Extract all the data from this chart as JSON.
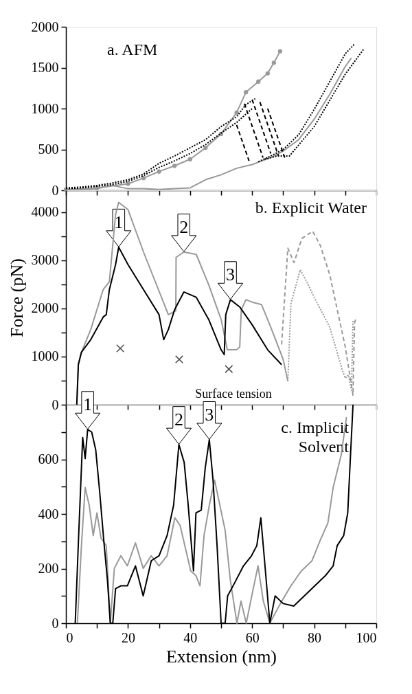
{
  "chart_data": [
    {
      "type": "line",
      "title": "a. AFM",
      "xlim": [
        0,
        100
      ],
      "xticks": [
        0,
        {
          "value": 10,
          "label": null
        },
        20,
        {
          "value": 30,
          "label": null
        },
        40,
        {
          "value": 50,
          "label": null
        },
        60,
        {
          "value": 70,
          "label": null
        },
        80,
        {
          "value": 90,
          "label": null
        },
        100
      ],
      "ylim": [
        0,
        2000
      ],
      "yticks": [
        0,
        500,
        1000,
        1500,
        2000
      ],
      "tick_labels": "y",
      "grid": false,
      "series": [
        {
          "color": "#999999",
          "marker": "circle",
          "x": [
            0,
            10,
            20,
            25,
            30,
            35,
            40,
            45,
            50,
            55,
            58,
            62,
            65,
            67,
            69
          ],
          "values": [
            10,
            30,
            80,
            150,
            230,
            300,
            380,
            520,
            690,
            950,
            1200,
            1330,
            1430,
            1560,
            1700
          ]
        },
        {
          "color": "#999999",
          "x": [
            0,
            5,
            10,
            15,
            20,
            25,
            30,
            35,
            40,
            45,
            50,
            55,
            60,
            66,
            70,
            75,
            80,
            85,
            90,
            92
          ],
          "values": [
            0,
            10,
            20,
            60,
            20,
            20,
            10,
            20,
            30,
            130,
            190,
            270,
            315,
            400,
            480,
            620,
            870,
            1175,
            1515,
            1620
          ]
        },
        {
          "color": "#000000",
          "line_style": "dotted",
          "x": [
            0,
            5,
            10,
            15,
            20,
            25,
            30,
            35,
            40,
            45,
            50,
            55,
            58,
            61,
            61.5,
            62,
            66,
            70,
            75,
            80,
            85,
            90,
            93
          ],
          "values": [
            30,
            40,
            60,
            90,
            130,
            200,
            330,
            420,
            520,
            620,
            780,
            900,
            1050,
            1120,
            null,
            350,
            420,
            500,
            680,
            990,
            1330,
            1670,
            1790
          ]
        },
        {
          "color": "#000000",
          "line_style": "dotted",
          "x": [
            0,
            5,
            10,
            15,
            20,
            25,
            30,
            35,
            40,
            45,
            50,
            55,
            60,
            60.5,
            64,
            68,
            72,
            76,
            80,
            85,
            90,
            96
          ],
          "values": [
            20,
            30,
            50,
            70,
            110,
            180,
            280,
            360,
            450,
            560,
            700,
            830,
            1000,
            null,
            380,
            420,
            420,
            600,
            780,
            1100,
            1420,
            1730
          ]
        },
        {
          "color": "#000000",
          "line_style": "dashed",
          "x": [
            55,
            59
          ],
          "values": [
            800,
            360
          ]
        },
        {
          "color": "#000000",
          "line_style": "dashed",
          "x": [
            57.5,
            63.5
          ],
          "values": [
            1060,
            400
          ]
        },
        {
          "color": "#000000",
          "line_style": "dashed",
          "x": [
            60,
            66
          ],
          "values": [
            1110,
            450
          ]
        },
        {
          "color": "#000000",
          "line_style": "dashed",
          "x": [
            62.5,
            68.5
          ],
          "values": [
            1080,
            420
          ]
        },
        {
          "color": "#000000",
          "line_style": "dashed",
          "x": [
            65,
            70.5
          ],
          "values": [
            1000,
            400
          ]
        }
      ]
    },
    {
      "type": "line",
      "title": "b. Explicit Water",
      "ylabel": "Force (pN)",
      "xlim": [
        0,
        100
      ],
      "xticks": [
        0,
        {
          "value": 10,
          "label": null
        },
        20,
        {
          "value": 30,
          "label": null
        },
        40,
        {
          "value": 50,
          "label": null
        },
        60,
        {
          "value": 70,
          "label": null
        },
        80,
        {
          "value": 90,
          "label": null
        },
        100
      ],
      "ylim": [
        0,
        4450
      ],
      "yticks": [
        0,
        {
          "value": 500,
          "label": null
        },
        1000,
        {
          "value": 1500,
          "label": null
        },
        2000,
        {
          "value": 2500,
          "label": null
        },
        3000,
        {
          "value": 3500,
          "label": null
        },
        4000
      ],
      "tick_labels": "y",
      "grid": false,
      "series": [
        {
          "color": "#999999",
          "x": [
            3.5,
            4,
            5,
            8,
            12,
            14,
            16,
            17,
            20,
            25,
            33,
            35.4,
            35.5,
            38,
            42,
            46,
            50,
            52,
            55,
            56,
            56.5,
            58,
            60,
            63,
            66,
            70,
            71.5
          ],
          "values": [
            0,
            830,
            1090,
            1560,
            2390,
            2550,
            3950,
            4200,
            4050,
            3170,
            1870,
            1950,
            3060,
            3170,
            3120,
            2490,
            1770,
            1140,
            1140,
            1200,
            1970,
            2180,
            2130,
            2080,
            1610,
            940,
            490
          ]
        },
        {
          "color": "#000000",
          "x": [
            3.5,
            4,
            5,
            8,
            12,
            13,
            14,
            16,
            17,
            20,
            25,
            30,
            31.5,
            33,
            35,
            38,
            42,
            46,
            50,
            51,
            51.5,
            53,
            56,
            60,
            65,
            69.5
          ],
          "values": [
            0,
            830,
            1090,
            1350,
            1820,
            1870,
            2390,
            2910,
            3270,
            2910,
            2390,
            1870,
            1350,
            1560,
            1970,
            2340,
            2230,
            1770,
            1140,
            1040,
            1870,
            2180,
            2030,
            1660,
            1140,
            830
          ]
        },
        {
          "color": "#999999",
          "line_style": "dashed",
          "x": [
            69.5,
            71.5,
            73.5,
            76,
            79.5,
            82,
            85,
            88,
            90,
            92.5,
            93,
            93.5
          ],
          "values": [
            1250,
            3250,
            2950,
            3450,
            3600,
            3300,
            2700,
            1800,
            1200,
            200,
            1700,
            1800
          ]
        },
        {
          "color": "#999999",
          "line_style": "dotted",
          "x": [
            71.5,
            72.5,
            75.5,
            78,
            80,
            85,
            89,
            90,
            91,
            92,
            92.5
          ],
          "values": [
            490,
            2100,
            2800,
            2500,
            2230,
            1610,
            730,
            550,
            620,
            300,
            1750
          ]
        },
        {
          "type": "scatter",
          "marker": "cross",
          "color": "#000000",
          "x": [
            17.5,
            36.5,
            52.5
          ],
          "values": [
            1170,
            940,
            740
          ]
        }
      ],
      "annotations": [
        {
          "text": "1",
          "x": 17,
          "y": 3270
        },
        {
          "text": "2",
          "x": 38,
          "y": 3170
        },
        {
          "text": "3",
          "x": 53,
          "y": 2180
        },
        "Surface tension"
      ]
    },
    {
      "type": "line",
      "title": "c. Implicit\nSolvent",
      "xlabel": "Extension (nm)",
      "xlim": [
        0,
        100
      ],
      "xticks": [
        0,
        {
          "value": 10,
          "label": null
        },
        20,
        {
          "value": 30,
          "label": null
        },
        40,
        {
          "value": 50,
          "label": null
        },
        60,
        {
          "value": 70,
          "label": null
        },
        80,
        {
          "value": 90,
          "label": null
        },
        100
      ],
      "ylim": [
        0,
        800
      ],
      "yticks": [
        0,
        {
          "value": 100,
          "label": null
        },
        200,
        {
          "value": 300,
          "label": null
        },
        400,
        {
          "value": 500,
          "label": null
        },
        600,
        {
          "value": 700,
          "label": null
        }
      ],
      "grid": false,
      "series": [
        {
          "color": "#999999",
          "x": [
            3.7,
            5,
            6.2,
            7.5,
            8.8,
            10,
            11.3,
            13,
            14.3,
            15.6,
            17.7,
            19.8,
            22.4,
            24.9,
            27.5,
            30,
            32.6,
            35.1,
            36.8,
            38.5,
            40.2,
            41.9,
            43.2,
            44.5,
            46.2,
            47.9,
            49.6,
            51.3,
            53,
            55.1,
            56.4,
            58.1,
            60.2,
            61.9,
            63.6,
            65.7,
            69.1,
            72.5,
            75.9,
            79.3,
            81.9,
            84.4,
            86.1,
            88.7,
            90.4
          ],
          "values": [
            0,
            284,
            497,
            432,
            321,
            404,
            312,
            284,
            0,
            201,
            247,
            210,
            294,
            201,
            247,
            210,
            247,
            386,
            358,
            275,
            192,
            174,
            137,
            321,
            432,
            524,
            432,
            340,
            155,
            0,
            81,
            0,
            118,
            210,
            81,
            0,
            72,
            137,
            192,
            229,
            303,
            367,
            497,
            617,
            755
          ]
        },
        {
          "color": "#000000",
          "x": [
            3,
            4.1,
            5.4,
            6.2,
            7,
            8.3,
            9.6,
            10.9,
            12.2,
            13.4,
            14.3,
            15.1,
            16,
            17.7,
            19.8,
            22.4,
            24.9,
            27.5,
            30,
            32.6,
            34.7,
            36.4,
            38.1,
            39.4,
            41.1,
            41.9,
            43.6,
            44.9,
            46.2,
            47.4,
            48.7,
            50,
            51.3,
            52.1,
            54.7,
            57.2,
            59.8,
            61.5,
            62.8,
            64,
            65.7,
            67.4,
            70,
            73.4,
            76.8,
            80.2,
            83.6,
            86.1,
            87.4,
            89.5,
            90.8,
            91.7,
            92.5
          ],
          "values": [
            0,
            320,
            680,
            603,
            709,
            700,
            635,
            478,
            303,
            155,
            0,
            0,
            127,
            137,
            137,
            210,
            100,
            229,
            247,
            321,
            432,
            654,
            589,
            432,
            192,
            404,
            414,
            570,
            672,
            524,
            284,
            0,
            0,
            100,
            155,
            210,
            247,
            284,
            386,
            229,
            0,
            100,
            72,
            63,
            100,
            137,
            174,
            210,
            284,
            321,
            404,
            617,
            800
          ]
        }
      ],
      "annotations": [
        {
          "text": "1",
          "x": 7,
          "y": 709
        },
        {
          "text": "2",
          "x": 36.4,
          "y": 654
        },
        {
          "text": "3",
          "x": 46.2,
          "y": 672
        }
      ]
    }
  ]
}
